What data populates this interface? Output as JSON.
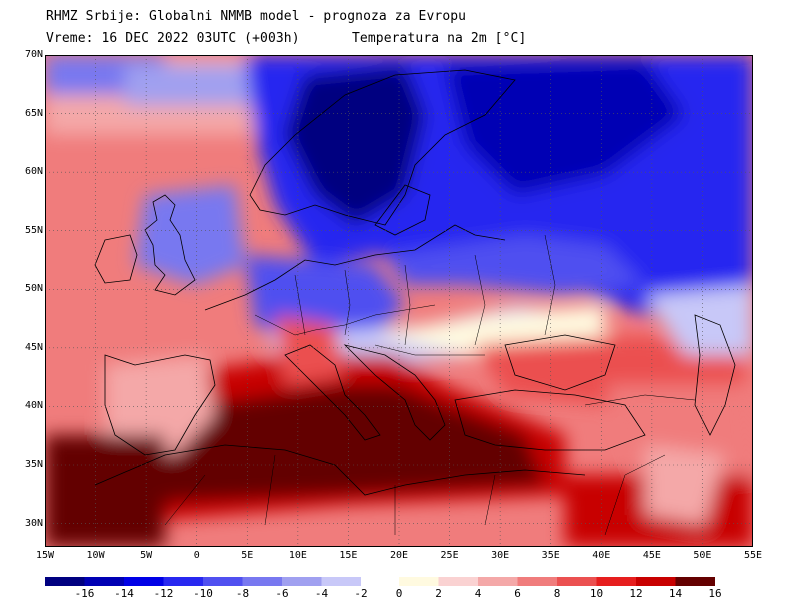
{
  "title": {
    "line1": "RHMZ Srbije: Globalni NMMB model - prognoza za Evropu",
    "line2": "Vreme: 16 DEC 2022 03UTC (+003h)",
    "line3": "Temperatura na 2m [°C]"
  },
  "map": {
    "lat_labels": [
      "70N",
      "65N",
      "60N",
      "55N",
      "50N",
      "45N",
      "40N",
      "35N",
      "30N"
    ],
    "lat_values": [
      70,
      65,
      60,
      55,
      50,
      45,
      40,
      35,
      30
    ],
    "lon_labels": [
      "15W",
      "10W",
      "5W",
      "0",
      "5E",
      "10E",
      "15E",
      "20E",
      "25E",
      "30E",
      "35E",
      "40E",
      "45E",
      "50E",
      "55E"
    ],
    "lon_values": [
      -15,
      -10,
      -5,
      0,
      5,
      10,
      15,
      20,
      25,
      30,
      35,
      40,
      45,
      50,
      55
    ],
    "lat_range": [
      28,
      70
    ],
    "lon_range": [
      -15,
      55
    ],
    "grid": true
  },
  "colorbar": {
    "labels": [
      "-16",
      "-14",
      "-12",
      "-10",
      "-8",
      "-6",
      "-4",
      "-2",
      "0",
      "2",
      "4",
      "6",
      "8",
      "10",
      "12",
      "14",
      "16"
    ],
    "colors_cold": [
      "#000080",
      "#0000b4",
      "#0000e6",
      "#2828f0",
      "#5050f0",
      "#7878f0",
      "#a0a0f0",
      "#c8c8f8"
    ],
    "colors_warm": [
      "#fffae0",
      "#fad2d2",
      "#f4a8a8",
      "#f07c7c",
      "#eb5050",
      "#e61e1e",
      "#c80000",
      "#640000"
    ]
  }
}
